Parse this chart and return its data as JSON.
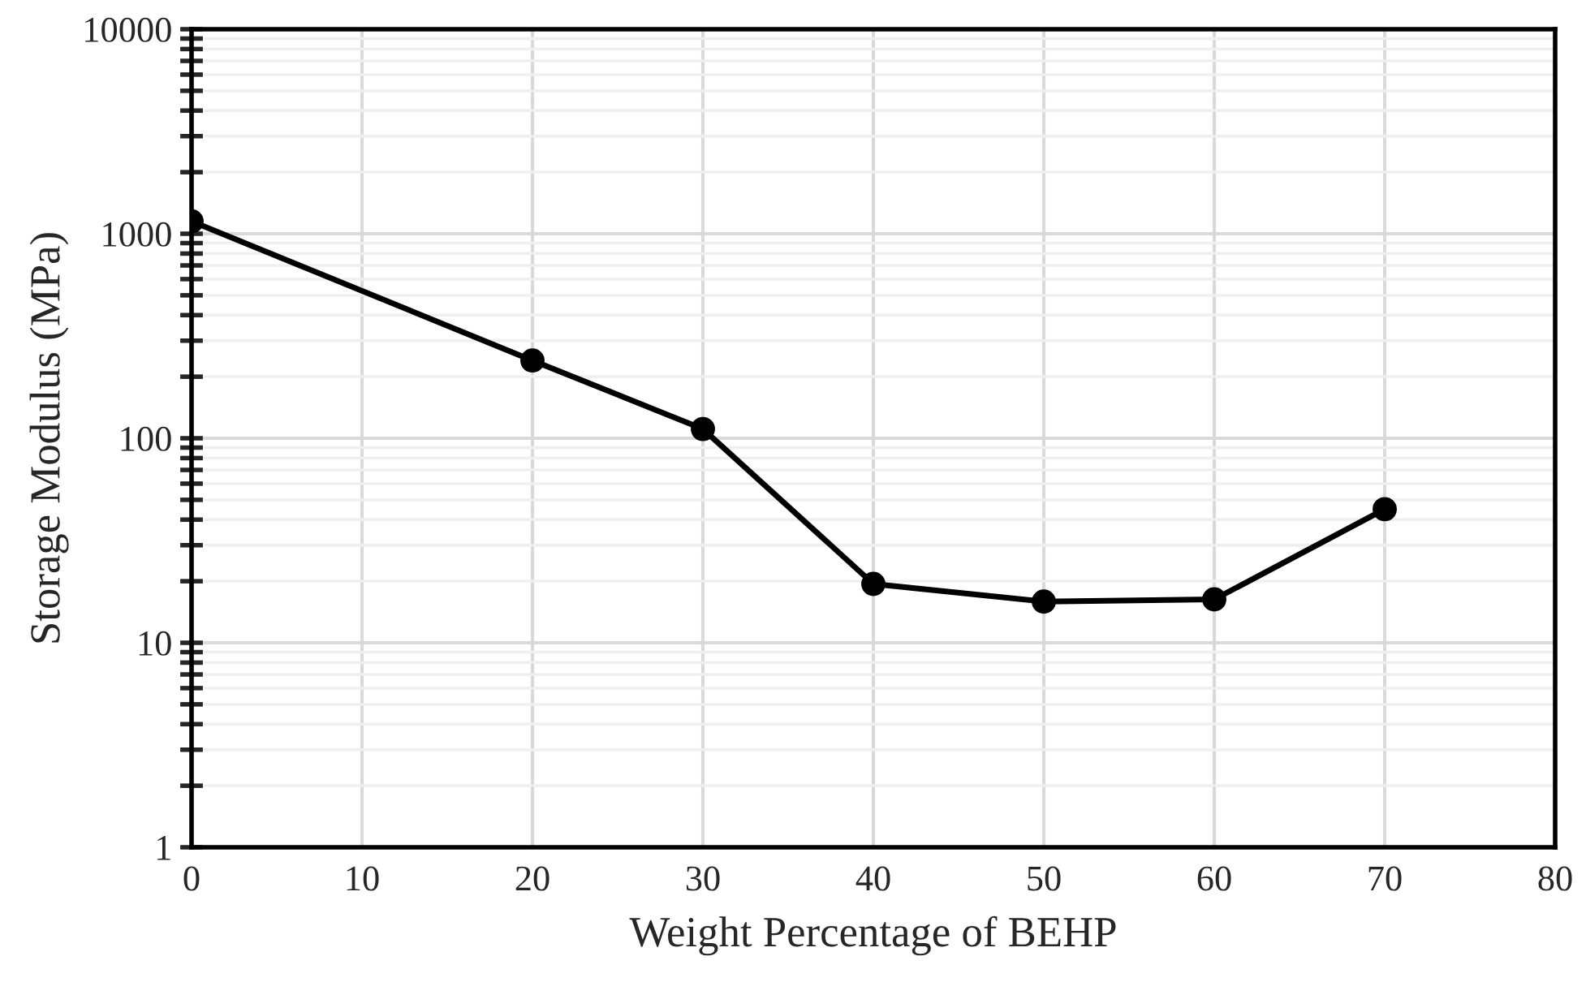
{
  "chart_data": {
    "type": "line",
    "xlabel": "Weight Percentage of BEHP",
    "ylabel": "Storage Modulus (MPa)",
    "x": [
      0,
      20,
      30,
      40,
      50,
      60,
      70
    ],
    "series": [
      {
        "color": "#000000",
        "values": [
          1150,
          240,
          111,
          19.4,
          15.9,
          16.3,
          45
        ]
      }
    ],
    "log": "y",
    "xlim": [
      0,
      80
    ],
    "xticks": [
      0,
      10,
      20,
      30,
      40,
      50,
      60,
      70,
      80
    ],
    "ylim": [
      1,
      10000
    ],
    "yticks": [
      1,
      10,
      100,
      1000,
      10000
    ],
    "grid": true,
    "marker": "circle",
    "line_style": "solid"
  }
}
